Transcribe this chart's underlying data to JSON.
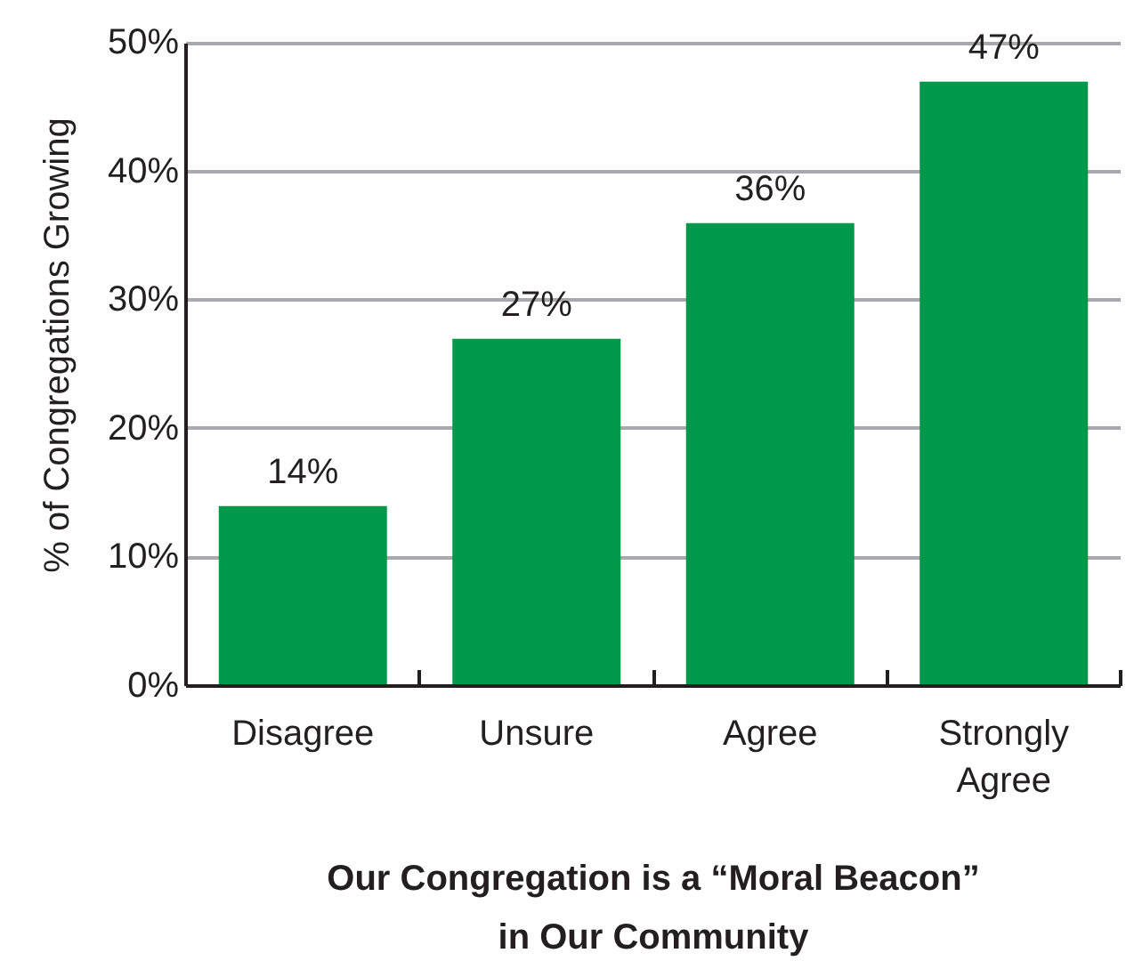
{
  "chart_data": {
    "type": "bar",
    "xlabel": "Our Congregation is a “Moral Beacon” in Our Community",
    "ylabel": "% of Congregations Growing",
    "categories": [
      "Disagree",
      "Unsure",
      "Agree",
      "Strongly Agree"
    ],
    "values": [
      14,
      27,
      36,
      47
    ],
    "value_labels": [
      "14%",
      "27%",
      "36%",
      "47%"
    ],
    "color": "#00984a",
    "ylim": [
      0,
      50
    ],
    "yticks": [
      {
        "value": 0,
        "label": "0%"
      },
      {
        "value": 10,
        "label": "10%"
      },
      {
        "value": 20,
        "label": "20%"
      },
      {
        "value": 30,
        "label": "30%"
      },
      {
        "value": 40,
        "label": "40%"
      },
      {
        "value": 50,
        "label": "50%"
      }
    ],
    "grid": "y"
  }
}
